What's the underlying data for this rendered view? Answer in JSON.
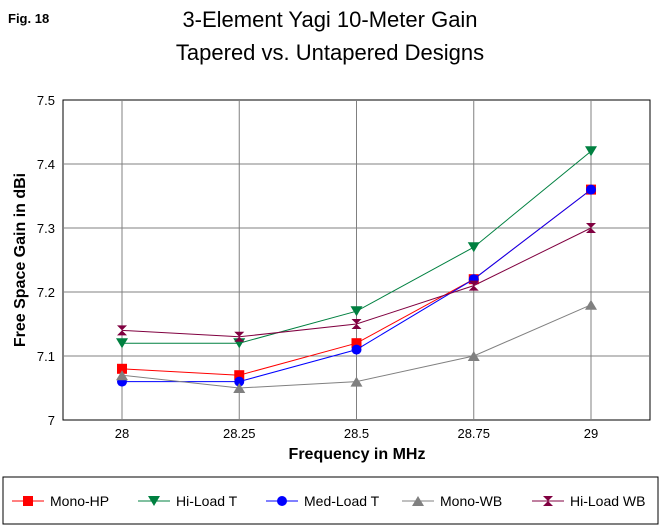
{
  "figure_label": "Fig. 18",
  "chart_data": {
    "type": "line",
    "title": "3-Element Yagi 10-Meter Gain",
    "subtitle": "Tapered vs. Untapered Designs",
    "xlabel": "Frequency in MHz",
    "ylabel": "Free Space Gain in dBi",
    "categories": [
      "28",
      "28.25",
      "28.5",
      "28.75",
      "29"
    ],
    "y_ticks": [
      "7",
      "7.1",
      "7.2",
      "7.3",
      "7.4",
      "7.5"
    ],
    "ylim": [
      7.0,
      7.5
    ],
    "grid": true,
    "legend_position": "bottom",
    "series": [
      {
        "name": "Mono-HP",
        "color": "#ff0000",
        "marker": "square",
        "values": [
          7.08,
          7.07,
          7.12,
          7.22,
          7.36
        ]
      },
      {
        "name": "Hi-Load T",
        "color": "#008040",
        "marker": "triangle-down",
        "values": [
          7.12,
          7.12,
          7.17,
          7.27,
          7.42
        ]
      },
      {
        "name": "Med-Load T",
        "color": "#0000ff",
        "marker": "circle",
        "values": [
          7.06,
          7.06,
          7.11,
          7.22,
          7.36
        ]
      },
      {
        "name": "Mono-WB",
        "color": "#808080",
        "marker": "triangle-up",
        "values": [
          7.07,
          7.05,
          7.06,
          7.1,
          7.18
        ]
      },
      {
        "name": "Hi-Load WB",
        "color": "#800040",
        "marker": "bowtie",
        "values": [
          7.14,
          7.13,
          7.15,
          7.21,
          7.3
        ]
      }
    ]
  }
}
